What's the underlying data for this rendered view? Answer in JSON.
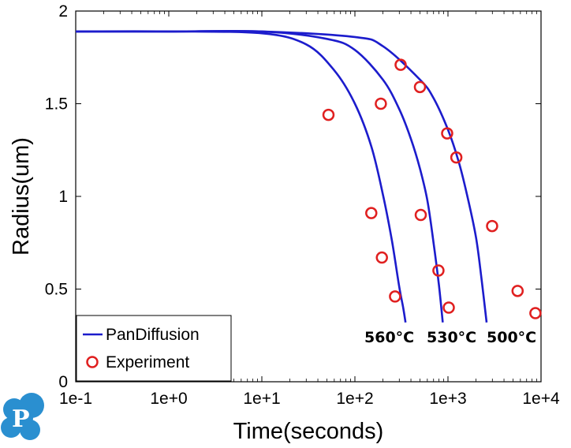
{
  "chart_data": {
    "type": "scatter",
    "xscale": "log",
    "xlim": [
      0.1,
      10000
    ],
    "ylim": [
      0,
      2
    ],
    "xlabel": "Time(seconds)",
    "ylabel": "Radius(um)",
    "xticks": [
      0.1,
      1,
      10,
      100,
      1000,
      10000
    ],
    "xtick_labels": [
      "1e-1",
      "1e+0",
      "1e+1",
      "1e+2",
      "1e+3",
      "1e+4"
    ],
    "yticks": [
      0,
      0.5,
      1,
      1.5,
      2
    ],
    "ytick_labels": [
      "0",
      "0.5",
      "1",
      "1.5",
      "2"
    ],
    "grid": false,
    "legend": {
      "position": "bottom-left",
      "entries": [
        "PanDiffusion",
        "Experiment"
      ]
    },
    "colors": {
      "model": "#1c1ccc",
      "experiment": "#e02020"
    },
    "series": [
      {
        "name": "PanDiffusion",
        "kind": "line",
        "curves": [
          {
            "label": "560°C",
            "x": [
              0.1,
              1,
              10,
              30,
              60,
              100,
              150,
              200,
              250,
              300,
              330,
              350
            ],
            "y": [
              1.89,
              1.89,
              1.88,
              1.82,
              1.68,
              1.5,
              1.27,
              1.01,
              0.76,
              0.51,
              0.4,
              0.32
            ]
          },
          {
            "label": "530°C",
            "x": [
              0.1,
              1,
              10,
              50,
              100,
              200,
              300,
              400,
              500,
              600,
              700,
              800,
              880
            ],
            "y": [
              1.89,
              1.89,
              1.89,
              1.85,
              1.79,
              1.63,
              1.47,
              1.31,
              1.15,
              0.98,
              0.75,
              0.52,
              0.32
            ]
          },
          {
            "label": "500°C",
            "x": [
              0.1,
              1,
              10,
              100,
              200,
              500,
              700,
              1000,
              1300,
              1600,
              2000,
              2300,
              2600
            ],
            "y": [
              1.89,
              1.89,
              1.89,
              1.86,
              1.81,
              1.63,
              1.53,
              1.36,
              1.19,
              1.01,
              0.78,
              0.55,
              0.32
            ]
          }
        ]
      },
      {
        "name": "Experiment",
        "kind": "marker",
        "x": [
          52,
          190,
          310,
          500,
          980,
          1230,
          150,
          195,
          270,
          510,
          790,
          1020,
          2980,
          5600,
          8700
        ],
        "y": [
          1.44,
          1.5,
          1.71,
          1.59,
          1.34,
          1.21,
          0.91,
          0.67,
          0.46,
          0.9,
          0.6,
          0.4,
          0.84,
          0.49,
          0.37
        ]
      }
    ],
    "annotations": [
      "560°C",
      "530°C",
      "500°C"
    ]
  }
}
